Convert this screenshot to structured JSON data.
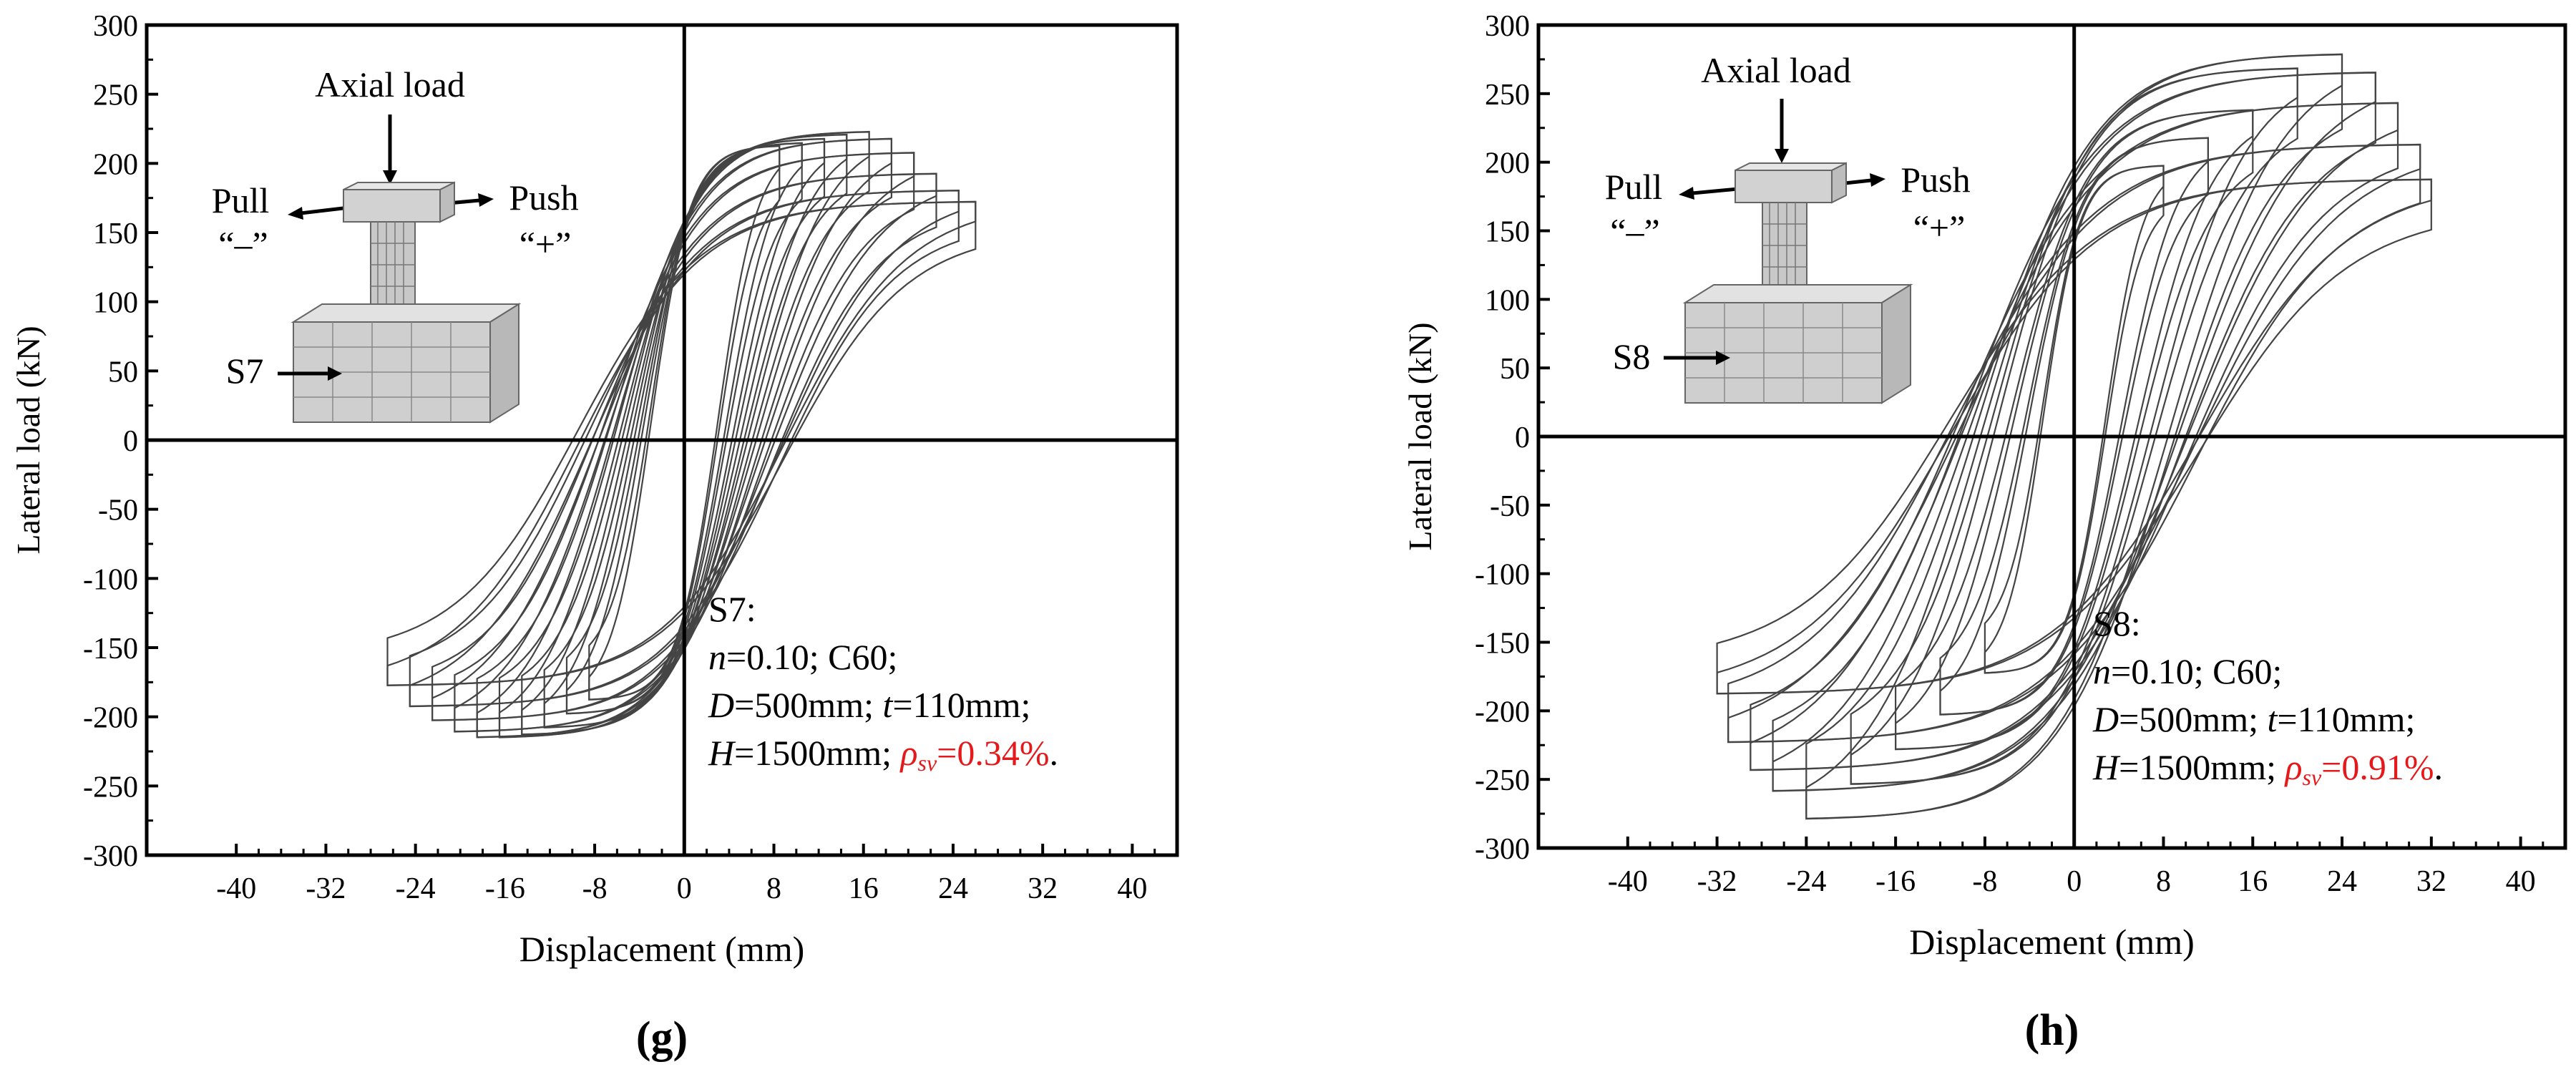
{
  "chart_data": [
    {
      "type": "line",
      "panel_label": "(g)",
      "specimen": "S7",
      "xlabel": "Displacement (mm)",
      "ylabel": "Lateral load (kN)",
      "xlim": [
        -48,
        44
      ],
      "ylim": [
        -300,
        300
      ],
      "xticks": [
        -40,
        -32,
        -24,
        -16,
        -8,
        0,
        8,
        16,
        24,
        32,
        40
      ],
      "yticks": [
        -300,
        -250,
        -200,
        -150,
        -100,
        -50,
        0,
        50,
        100,
        150,
        200,
        250,
        300
      ],
      "inset": {
        "axial_label": "Axial load",
        "pull_label": "Pull",
        "pull_sign": "“–”",
        "push_label": "Push",
        "push_sign": "“+”",
        "specimen_label": "S7"
      },
      "annotation": {
        "line1": "S7:",
        "n_symbol": "n",
        "n_value": "=0.10; C60;",
        "d_symbol": "D",
        "d_value": "=500mm; ",
        "t_symbol": "t",
        "t_value": "=110mm;",
        "h_symbol": "H",
        "h_value": "=1500mm; ",
        "rho_symbol": "ρ",
        "rho_sub": "sv",
        "rho_value": "=0.34%",
        "period": "."
      },
      "cycles": [
        {
          "amp_pos": 8.5,
          "peak_pos": 210,
          "amp_neg": -8.5,
          "peak_neg": -185
        },
        {
          "amp_pos": 10.5,
          "peak_pos": 212,
          "amp_neg": -10.5,
          "peak_neg": -195
        },
        {
          "amp_pos": 12.5,
          "peak_pos": 215,
          "amp_neg": -12.5,
          "peak_neg": -205
        },
        {
          "amp_pos": 14.5,
          "peak_pos": 218,
          "amp_neg": -14.5,
          "peak_neg": -210
        },
        {
          "amp_pos": 16.5,
          "peak_pos": 220,
          "amp_neg": -16.5,
          "peak_neg": -212
        },
        {
          "amp_pos": 18.5,
          "peak_pos": 215,
          "amp_neg": -18.5,
          "peak_neg": -212
        },
        {
          "amp_pos": 20.5,
          "peak_pos": 205,
          "amp_neg": -20.5,
          "peak_neg": -208
        },
        {
          "amp_pos": 22.5,
          "peak_pos": 190,
          "amp_neg": -22.5,
          "peak_neg": -200
        },
        {
          "amp_pos": 24.5,
          "peak_pos": 178,
          "amp_neg": -24.5,
          "peak_neg": -190
        },
        {
          "amp_pos": 26.0,
          "peak_pos": 170,
          "amp_neg": -26.5,
          "peak_neg": -175
        }
      ]
    },
    {
      "type": "line",
      "panel_label": "(h)",
      "specimen": "S8",
      "xlabel": "Displacement (mm)",
      "ylabel": "Lateral load (kN)",
      "xlim": [
        -48,
        44
      ],
      "ylim": [
        -300,
        300
      ],
      "xticks": [
        -40,
        -32,
        -24,
        -16,
        -8,
        0,
        8,
        16,
        24,
        32,
        40
      ],
      "yticks": [
        -300,
        -250,
        -200,
        -150,
        -100,
        -50,
        0,
        50,
        100,
        150,
        200,
        250,
        300
      ],
      "inset": {
        "axial_label": "Axial load",
        "pull_label": "Pull",
        "pull_sign": "“–”",
        "push_label": "Push",
        "push_sign": "“+”",
        "specimen_label": "S8"
      },
      "annotation": {
        "line1": "S8:",
        "n_symbol": "n",
        "n_value": "=0.10; C60;",
        "d_symbol": "D",
        "d_value": "=500mm; ",
        "t_symbol": "t",
        "t_value": "=110mm;",
        "h_symbol": "H",
        "h_value": "=1500mm; ",
        "rho_symbol": "ρ",
        "rho_sub": "sv",
        "rho_value": "=0.91%",
        "period": "."
      },
      "cycles": [
        {
          "amp_pos": 8.0,
          "peak_pos": 195,
          "amp_neg": -8.0,
          "peak_neg": -170
        },
        {
          "amp_pos": 12.0,
          "peak_pos": 215,
          "amp_neg": -12.0,
          "peak_neg": -200
        },
        {
          "amp_pos": 16.0,
          "peak_pos": 235,
          "amp_neg": -16.0,
          "peak_neg": -225
        },
        {
          "amp_pos": 20.0,
          "peak_pos": 265,
          "amp_neg": -20.0,
          "peak_neg": -250
        },
        {
          "amp_pos": 24.0,
          "peak_pos": 275,
          "amp_neg": -24.0,
          "peak_neg": -275
        },
        {
          "amp_pos": 27.0,
          "peak_pos": 262,
          "amp_neg": -27.0,
          "peak_neg": -255
        },
        {
          "amp_pos": 29.0,
          "peak_pos": 240,
          "amp_neg": -29.0,
          "peak_neg": -240
        },
        {
          "amp_pos": 31.0,
          "peak_pos": 210,
          "amp_neg": -31.0,
          "peak_neg": -220
        },
        {
          "amp_pos": 32.0,
          "peak_pos": 185,
          "amp_neg": -32.0,
          "peak_neg": -185
        }
      ]
    }
  ]
}
